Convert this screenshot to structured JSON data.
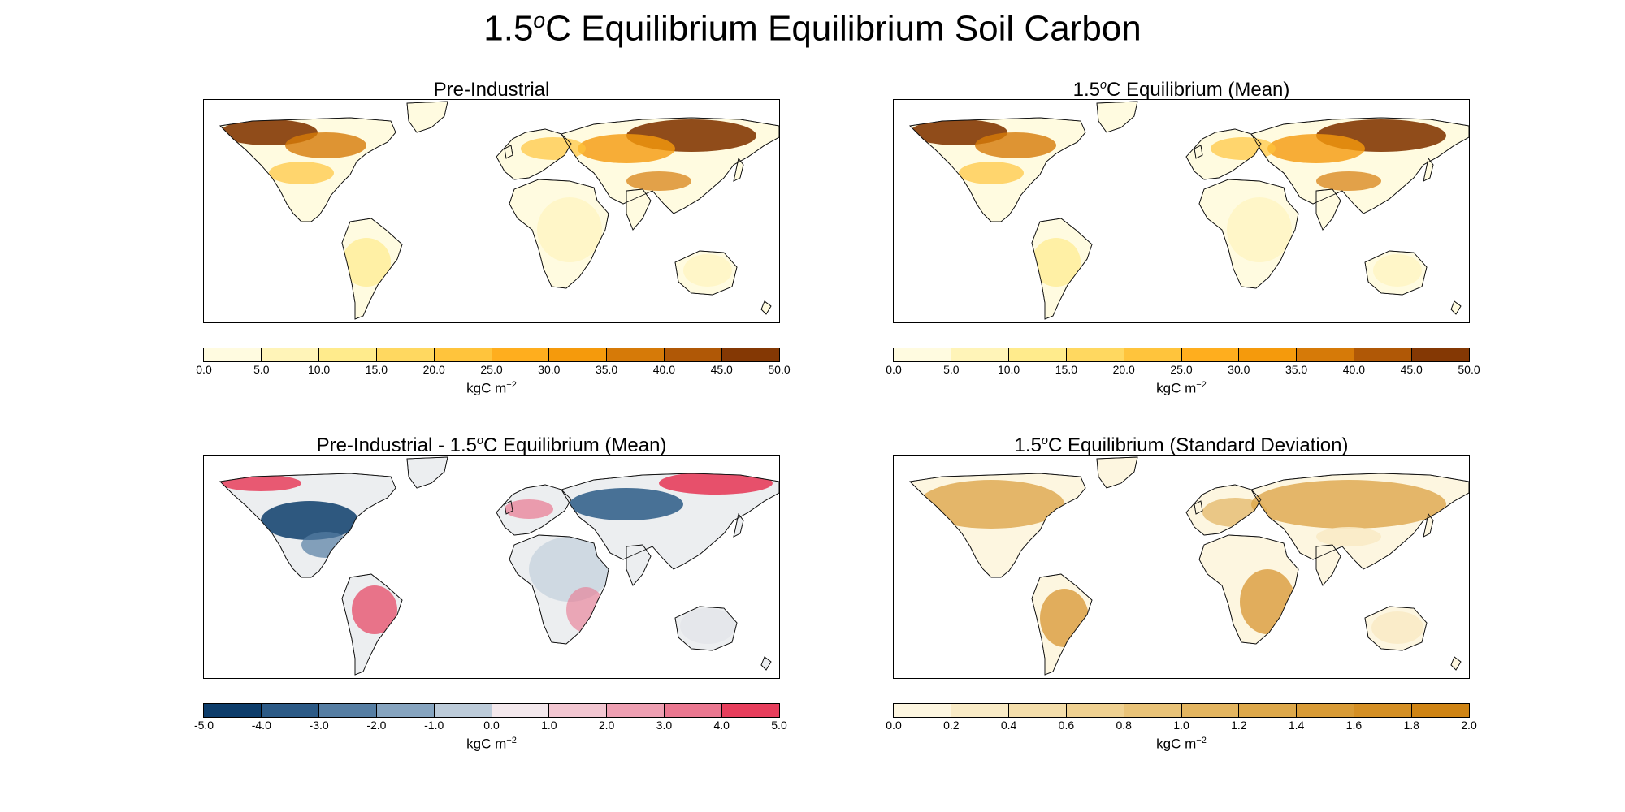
{
  "title": {
    "main": "1.5",
    "sup": "o",
    "rest": "C Equilibrium Equilibrium Soil Carbon"
  },
  "panels": [
    {
      "title": "Pre-Industrial",
      "title_sup": "",
      "title_rest": "",
      "palette": "carbon",
      "colors": [
        "#fffbe0",
        "#fff4b8",
        "#ffeb8c",
        "#ffd860",
        "#ffc43c",
        "#ffae1e",
        "#f59a0c",
        "#d67a08",
        "#b05806",
        "#843804"
      ],
      "ticks": [
        "0.0",
        "5.0",
        "10.0",
        "15.0",
        "20.0",
        "25.0",
        "30.0",
        "35.0",
        "40.0",
        "45.0",
        "50.0"
      ],
      "unit": "kgC m",
      "unit_sup": "−2"
    },
    {
      "title": "1.5",
      "title_sup": "o",
      "title_rest": "C Equilibrium (Mean)",
      "palette": "carbon",
      "colors": [
        "#fffbe0",
        "#fff4b8",
        "#ffeb8c",
        "#ffd860",
        "#ffc43c",
        "#ffae1e",
        "#f59a0c",
        "#d67a08",
        "#b05806",
        "#843804"
      ],
      "ticks": [
        "0.0",
        "5.0",
        "10.0",
        "15.0",
        "20.0",
        "25.0",
        "30.0",
        "35.0",
        "40.0",
        "45.0",
        "50.0"
      ],
      "unit": "kgC m",
      "unit_sup": "−2"
    },
    {
      "title": "Pre-Industrial - 1.5",
      "title_sup": "o",
      "title_rest": "C Equilibrium (Mean)",
      "palette": "diverging",
      "colors": [
        "#0d3d6b",
        "#2c5a86",
        "#567ea3",
        "#86a4bf",
        "#bccbd9",
        "#f3e8ec",
        "#f2c6d1",
        "#ee9fb2",
        "#ea7790",
        "#e73e5c"
      ],
      "ticks": [
        "-5.0",
        "-4.0",
        "-3.0",
        "-2.0",
        "-1.0",
        "0.0",
        "1.0",
        "2.0",
        "3.0",
        "4.0",
        "5.0"
      ],
      "unit": "kgC m",
      "unit_sup": "−2"
    },
    {
      "title": "1.5",
      "title_sup": "o",
      "title_rest": "C Equilibrium (Standard Deviation)",
      "palette": "stddev",
      "colors": [
        "#fdf6e0",
        "#f9ebc6",
        "#f4deab",
        "#efd191",
        "#e9c378",
        "#e3b560",
        "#dda84a",
        "#d89b36",
        "#d48f24",
        "#cf8414"
      ],
      "ticks": [
        "0.0",
        "0.2",
        "0.4",
        "0.6",
        "0.8",
        "1.0",
        "1.2",
        "1.4",
        "1.6",
        "1.8",
        "2.0"
      ],
      "unit": "kgC m",
      "unit_sup": "−2"
    }
  ]
}
